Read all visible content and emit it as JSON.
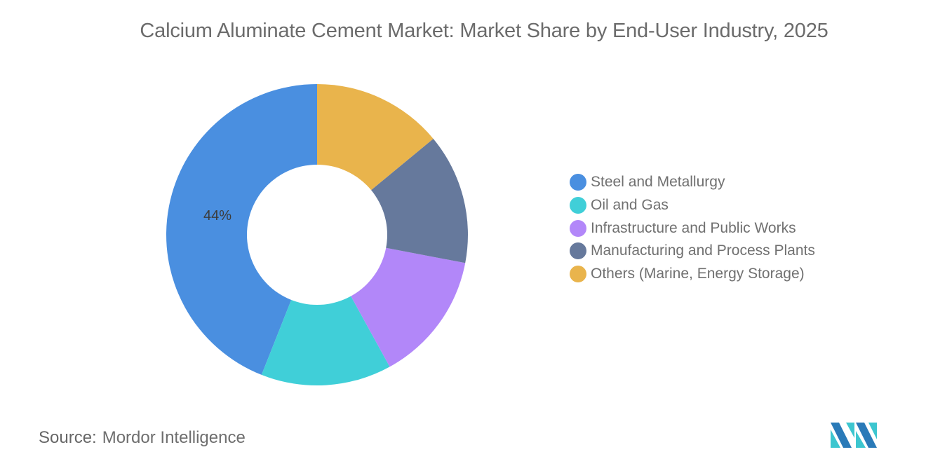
{
  "title": "Calcium Aluminate Cement Market: Market Share by End-User Industry, 2025",
  "source": {
    "label": "Source:",
    "value": "Mordor Intelligence"
  },
  "logo": {
    "icon": "mordor-intelligence-logo-icon",
    "colors": [
      "#2a7ab8",
      "#3cc6cf"
    ]
  },
  "legend": [
    {
      "label": "Steel and Metallurgy",
      "color": "#4a8fe0"
    },
    {
      "label": "Oil and Gas",
      "color": "#40cfd8"
    },
    {
      "label": "Infrastructure and Public Works",
      "color": "#b287f9"
    },
    {
      "label": "Manufacturing and Process Plants",
      "color": "#66799c"
    },
    {
      "label": "Others (Marine, Energy Storage)",
      "color": "#e9b44c"
    }
  ],
  "slice_labels": {
    "steel": "44%"
  },
  "chart_data": {
    "type": "pie",
    "subtype": "donut",
    "title": "Calcium Aluminate Cement Market: Market Share by End-User Industry, 2025",
    "categories": [
      "Steel and Metallurgy",
      "Oil and Gas",
      "Infrastructure and Public Works",
      "Manufacturing and Process Plants",
      "Others (Marine, Energy Storage)"
    ],
    "values": [
      44,
      14,
      14,
      14,
      14
    ],
    "unit": "%",
    "colors": [
      "#4a8fe0",
      "#40cfd8",
      "#b287f9",
      "#66799c",
      "#e9b44c"
    ],
    "data_labels": [
      {
        "category": "Steel and Metallurgy",
        "text": "44%"
      }
    ],
    "legend_position": "right",
    "source": "Mordor Intelligence"
  }
}
